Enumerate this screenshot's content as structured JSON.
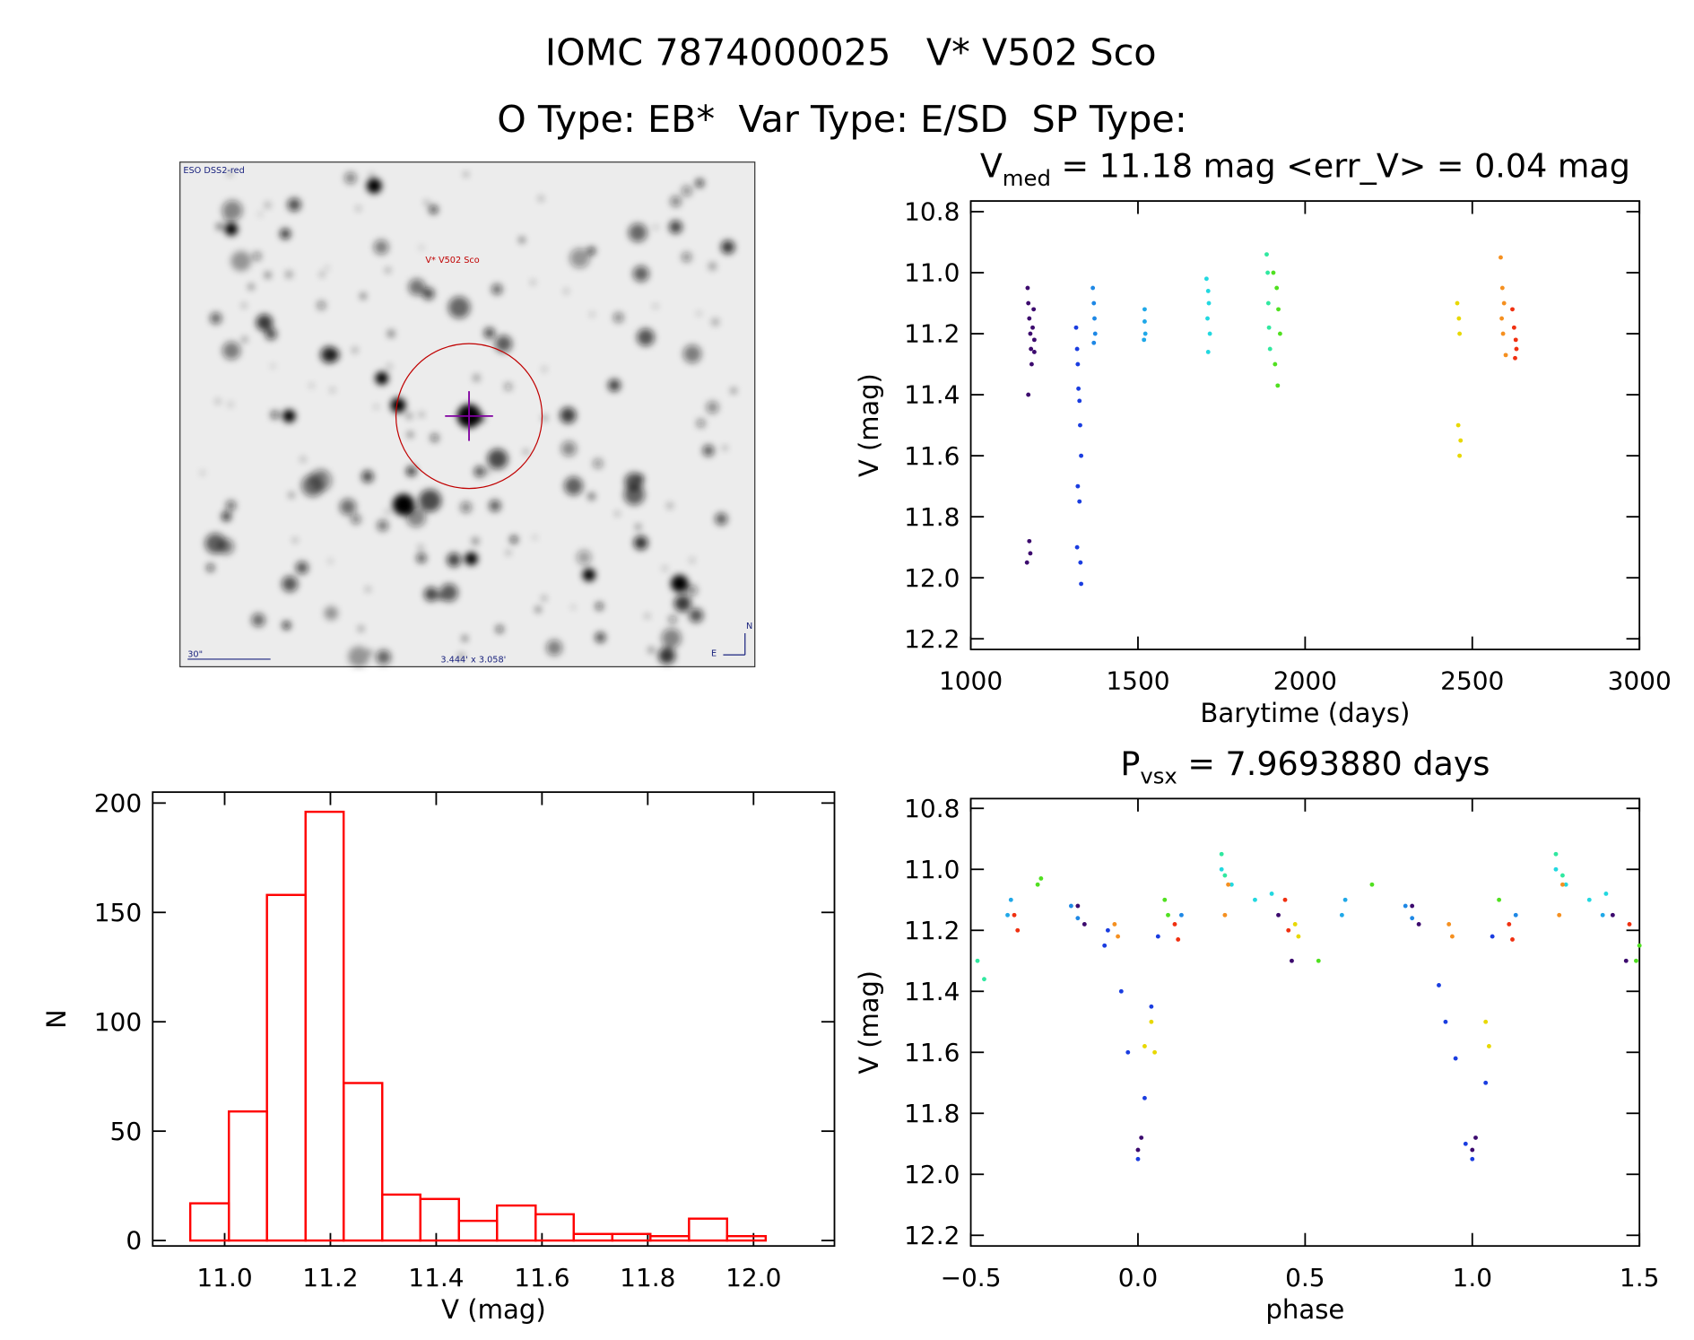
{
  "header": {
    "title": "IOMC 7874000025   V* V502 Sco",
    "subtitle": "O Type: EB*  Var Type: E/SD  SP Type:"
  },
  "image": {
    "survey": "ESO DSS2-red",
    "target": "V* V502 Sco",
    "scale": "30\"",
    "field": "3.444' x 3.058'",
    "north": "N",
    "east": "E"
  },
  "chart_data": [
    {
      "type": "histogram",
      "xlabel": "V (mag)",
      "ylabel": "N",
      "color": "#ff0000",
      "bins": [
        10.935,
        11.008,
        11.08,
        11.153,
        11.225,
        11.298,
        11.37,
        11.443,
        11.515,
        11.588,
        11.66,
        11.733,
        11.805,
        11.878,
        11.95,
        12.023
      ],
      "values": [
        17,
        59,
        158,
        196,
        72,
        21,
        19,
        9,
        16,
        12,
        3,
        3,
        2,
        10,
        2
      ],
      "xlim": [
        10.864,
        12.153
      ],
      "ylim": [
        -2.5,
        205
      ],
      "xticks": [
        {
          "value": 11,
          "label": "11.0"
        },
        11.2,
        11.4,
        11.6,
        11.8,
        {
          "value": 12,
          "label": "12.0"
        }
      ],
      "yticks": [
        0,
        50,
        100,
        150,
        200
      ]
    },
    {
      "type": "scatter",
      "title_main": "V",
      "title_sub": "med",
      "title_rest": " = 11.18 mag <err_V> = 0.04 mag",
      "xlabel": "Barytime (days)",
      "ylabel": "V (mag)",
      "xlim": [
        1000,
        3000
      ],
      "ylim": [
        12.235,
        10.765
      ],
      "xticks": [
        1000,
        1500,
        2000,
        2500,
        3000
      ],
      "yticks": [
        10.8,
        {
          "value": 11,
          "label": "11.0"
        },
        11.2,
        11.4,
        11.6,
        11.8,
        {
          "value": 12,
          "label": "12.0"
        },
        12.2
      ],
      "series": [
        {
          "color": "#3c0a6e",
          "x": [
            1170,
            1172,
            1175,
            1178,
            1180,
            1182,
            1185,
            1188,
            1190,
            1172,
            1175,
            1178,
            1190,
            1168
          ],
          "y": [
            11.05,
            11.1,
            11.15,
            11.2,
            11.25,
            11.3,
            11.18,
            11.12,
            11.22,
            11.4,
            11.88,
            11.92,
            11.26,
            11.95
          ]
        },
        {
          "color": "#1a3de0",
          "x": [
            1315,
            1318,
            1320,
            1322,
            1325,
            1327,
            1330,
            1320,
            1325,
            1318,
            1328,
            1330
          ],
          "y": [
            11.18,
            11.25,
            11.3,
            11.38,
            11.42,
            11.5,
            11.6,
            11.7,
            11.75,
            11.9,
            11.95,
            12.02
          ]
        },
        {
          "color": "#1e88e5",
          "x": [
            1365,
            1368,
            1370,
            1372,
            1368
          ],
          "y": [
            11.05,
            11.1,
            11.15,
            11.2,
            11.23
          ]
        },
        {
          "color": "#20a8e8",
          "x": [
            1520,
            1520,
            1522,
            1518
          ],
          "y": [
            11.12,
            11.16,
            11.2,
            11.22
          ]
        },
        {
          "color": "#22d8e0",
          "x": [
            1705,
            1710,
            1712,
            1708,
            1715,
            1710
          ],
          "y": [
            11.02,
            11.06,
            11.1,
            11.15,
            11.2,
            11.26
          ]
        },
        {
          "color": "#30e8a0",
          "x": [
            1885,
            1888,
            1890,
            1892,
            1895
          ],
          "y": [
            10.94,
            11.0,
            11.1,
            11.18,
            11.25
          ]
        },
        {
          "color": "#50e020",
          "x": [
            1905,
            1915,
            1920,
            1925,
            1910,
            1918
          ],
          "y": [
            11.0,
            11.05,
            11.12,
            11.2,
            11.3,
            11.37
          ]
        },
        {
          "color": "#e8d800",
          "x": [
            2455,
            2460,
            2462,
            2458,
            2465,
            2462
          ],
          "y": [
            11.1,
            11.15,
            11.2,
            11.5,
            11.55,
            11.6
          ]
        },
        {
          "color": "#f59020",
          "x": [
            2585,
            2590,
            2595,
            2588,
            2592,
            2600
          ],
          "y": [
            10.95,
            11.05,
            11.1,
            11.15,
            11.2,
            11.27
          ]
        },
        {
          "color": "#f03010",
          "x": [
            2620,
            2625,
            2630,
            2628,
            2632
          ],
          "y": [
            11.12,
            11.18,
            11.22,
            11.28,
            11.25
          ]
        }
      ]
    },
    {
      "type": "scatter",
      "title_main": "P",
      "title_sub": "vsx",
      "title_rest": " = 7.9693880 days",
      "xlabel": "phase",
      "ylabel": "V (mag)",
      "xlim": [
        -0.5,
        1.5
      ],
      "ylim": [
        12.235,
        10.768
      ],
      "xticks": [
        {
          "value": -0.5,
          "label": "−0.5"
        },
        {
          "value": 0,
          "label": "0.0"
        },
        0.5,
        {
          "value": 1,
          "label": "1.0"
        },
        1.5
      ],
      "yticks": [
        10.8,
        {
          "value": 11,
          "label": "11.0"
        },
        11.2,
        11.4,
        11.6,
        11.8,
        {
          "value": 12,
          "label": "12.0"
        },
        12.2
      ],
      "series": [
        {
          "color": "#3c0a6e",
          "x": [
            -0.18,
            -0.16,
            0.0,
            0.01,
            0.42,
            0.46,
            0.82,
            0.84,
            1.0,
            1.01,
            1.42,
            1.46
          ],
          "y": [
            11.12,
            11.18,
            11.92,
            11.88,
            11.15,
            11.3,
            11.12,
            11.18,
            11.92,
            11.88,
            11.15,
            11.3
          ]
        },
        {
          "color": "#1a3de0",
          "x": [
            -0.1,
            -0.09,
            -0.05,
            -0.03,
            0.0,
            0.02,
            0.04,
            0.06,
            0.9,
            0.92,
            0.95,
            0.98,
            1.0,
            1.04,
            1.06
          ],
          "y": [
            11.25,
            11.2,
            11.4,
            11.6,
            11.95,
            11.75,
            11.45,
            11.22,
            11.38,
            11.5,
            11.62,
            11.9,
            11.95,
            11.7,
            11.22
          ]
        },
        {
          "color": "#1e88e5",
          "x": [
            -0.2,
            -0.18,
            0.13,
            0.8,
            0.82,
            1.13
          ],
          "y": [
            11.12,
            11.16,
            11.15,
            11.12,
            11.16,
            11.15
          ]
        },
        {
          "color": "#20a8e8",
          "x": [
            -0.39,
            -0.38,
            0.61,
            0.62,
            1.39
          ],
          "y": [
            11.15,
            11.1,
            11.15,
            11.1,
            11.15
          ]
        },
        {
          "color": "#22d8e0",
          "x": [
            0.25,
            0.28,
            0.35,
            0.4,
            1.25,
            1.28,
            1.35,
            1.4
          ],
          "y": [
            11.0,
            11.05,
            11.1,
            11.08,
            11.0,
            11.05,
            11.1,
            11.08
          ]
        },
        {
          "color": "#30e8a0",
          "x": [
            -0.48,
            -0.46,
            0.25,
            0.26,
            1.25,
            1.27
          ],
          "y": [
            11.3,
            11.36,
            10.95,
            11.02,
            10.95,
            11.02
          ]
        },
        {
          "color": "#50e020",
          "x": [
            -0.3,
            -0.29,
            0.08,
            0.09,
            0.54,
            0.7,
            1.08,
            1.5,
            1.49
          ],
          "y": [
            11.05,
            11.03,
            11.1,
            11.15,
            11.3,
            11.05,
            11.1,
            11.25,
            11.3
          ]
        },
        {
          "color": "#e8d800",
          "x": [
            0.02,
            0.04,
            0.05,
            0.47,
            0.48,
            1.04,
            1.05
          ],
          "y": [
            11.58,
            11.5,
            11.6,
            11.18,
            11.22,
            11.5,
            11.58
          ]
        },
        {
          "color": "#f59020",
          "x": [
            -0.07,
            -0.06,
            0.26,
            0.27,
            0.93,
            0.94,
            1.26,
            1.27
          ],
          "y": [
            11.18,
            11.22,
            11.15,
            11.05,
            11.18,
            11.22,
            11.15,
            11.05
          ]
        },
        {
          "color": "#f03010",
          "x": [
            -0.37,
            -0.36,
            0.11,
            0.12,
            0.44,
            0.45,
            1.11,
            1.12,
            1.47
          ],
          "y": [
            11.15,
            11.2,
            11.18,
            11.23,
            11.1,
            11.2,
            11.18,
            11.23,
            11.18
          ]
        }
      ]
    }
  ]
}
